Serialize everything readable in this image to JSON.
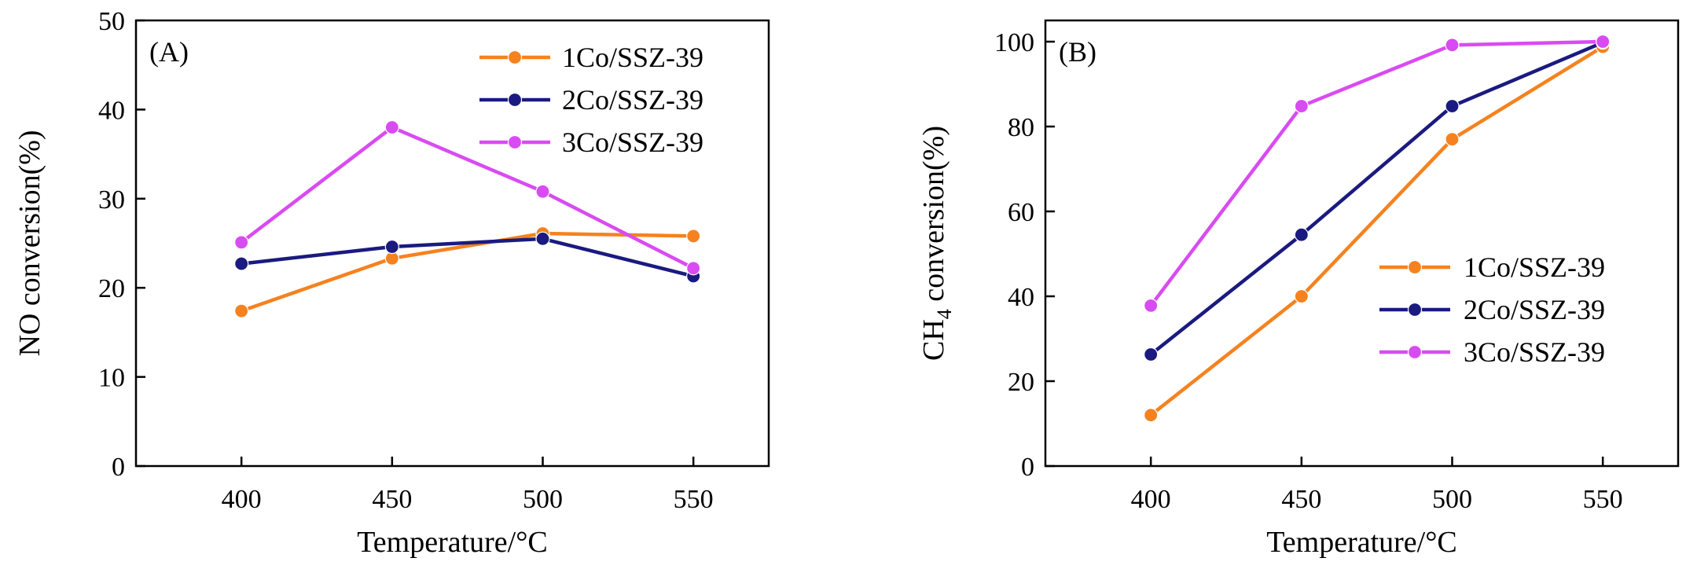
{
  "chart_data": [
    {
      "type": "line",
      "panel_label": "(A)",
      "xlabel": "Temperature/°C",
      "ylabel": "NO conversion(%)",
      "categories": [
        400,
        450,
        500,
        550
      ],
      "ylim": [
        0,
        50
      ],
      "yticks": [
        0,
        10,
        20,
        30,
        40,
        50
      ],
      "legend_position": "top-right",
      "series": [
        {
          "name": "1Co/SSZ-39",
          "color": "#F5821F",
          "values": [
            17.4,
            23.3,
            26.1,
            25.8
          ]
        },
        {
          "name": "2Co/SSZ-39",
          "color": "#1A1A80",
          "values": [
            22.7,
            24.6,
            25.5,
            21.3
          ]
        },
        {
          "name": "3Co/SSZ-39",
          "color": "#D94BF2",
          "values": [
            25.1,
            38.0,
            30.8,
            22.2
          ]
        }
      ]
    },
    {
      "type": "line",
      "panel_label": "(B)",
      "xlabel": "Temperature/°C",
      "ylabel_main": "CH",
      "ylabel_sub": "4",
      "ylabel_rest": " conversion(%)",
      "categories": [
        400,
        450,
        500,
        550
      ],
      "ylim": [
        0,
        105
      ],
      "yticks": [
        0,
        20,
        40,
        60,
        80,
        100
      ],
      "legend_position": "center-right",
      "series": [
        {
          "name": "1Co/SSZ-39",
          "color": "#F5821F",
          "values": [
            12.0,
            40.0,
            77.0,
            98.8
          ]
        },
        {
          "name": "2Co/SSZ-39",
          "color": "#1A1A80",
          "values": [
            26.3,
            54.5,
            84.8,
            99.8
          ]
        },
        {
          "name": "3Co/SSZ-39",
          "color": "#D94BF2",
          "values": [
            37.8,
            84.8,
            99.2,
            100.0
          ]
        }
      ]
    }
  ]
}
